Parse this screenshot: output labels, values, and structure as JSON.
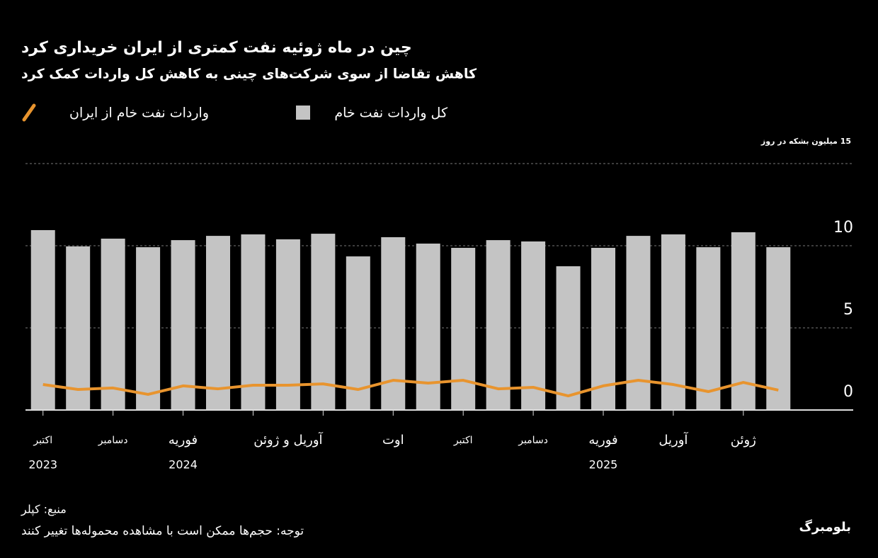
{
  "chart_data": {
    "type": "bar_line",
    "title": "چین در ماه ژوئیه نفت کمتری از ایران خریداری کرد",
    "subtitle": "کاهش تقاضا از سوی شرکت‌های چینی به کاهش کل واردات کمک کرد",
    "categories": [
      "اکتبر",
      null,
      "دسامبر",
      null,
      "فوریه",
      null,
      null,
      "آوریل و ژوئن",
      null,
      null,
      "اوت",
      null,
      "اکتبر",
      null,
      "دسامبر",
      null,
      "فوریه",
      null,
      "آوریل",
      null,
      "ژوئن",
      null
    ],
    "category_years": [
      "2023",
      null,
      null,
      null,
      "2024",
      null,
      null,
      null,
      null,
      null,
      null,
      null,
      null,
      null,
      null,
      null,
      "2025",
      null,
      null,
      null,
      null,
      null
    ],
    "series": [
      {
        "name": "کل واردات نفت خام",
        "type": "bar",
        "color": "#c4c4c4",
        "values": [
          10.95,
          9.96,
          10.43,
          9.91,
          10.34,
          10.6,
          10.69,
          10.39,
          10.73,
          9.35,
          10.52,
          10.13,
          9.87,
          10.34,
          10.26,
          8.75,
          9.87,
          10.6,
          10.69,
          9.91,
          10.82,
          9.91
        ]
      },
      {
        "name": "واردات نفت خام از ایران",
        "type": "line",
        "color": "#e8942e",
        "values": [
          1.55,
          1.25,
          1.34,
          0.95,
          1.47,
          1.29,
          1.51,
          1.51,
          1.59,
          1.25,
          1.81,
          1.64,
          1.81,
          1.29,
          1.38,
          0.86,
          1.47,
          1.81,
          1.55,
          1.12,
          1.68,
          1.21
        ]
      }
    ],
    "ylim": [
      0,
      15
    ],
    "yticks": [
      0,
      5,
      10,
      {
        "value": 15,
        "label": "15 میلیون بشکه در روز"
      }
    ],
    "grid": true,
    "source": "منبع: کپلر",
    "note": "توجه: حجم‌ها ممکن است با مشاهده محموله‌ها تغییر کنند",
    "brand": "بلومبرگ"
  }
}
